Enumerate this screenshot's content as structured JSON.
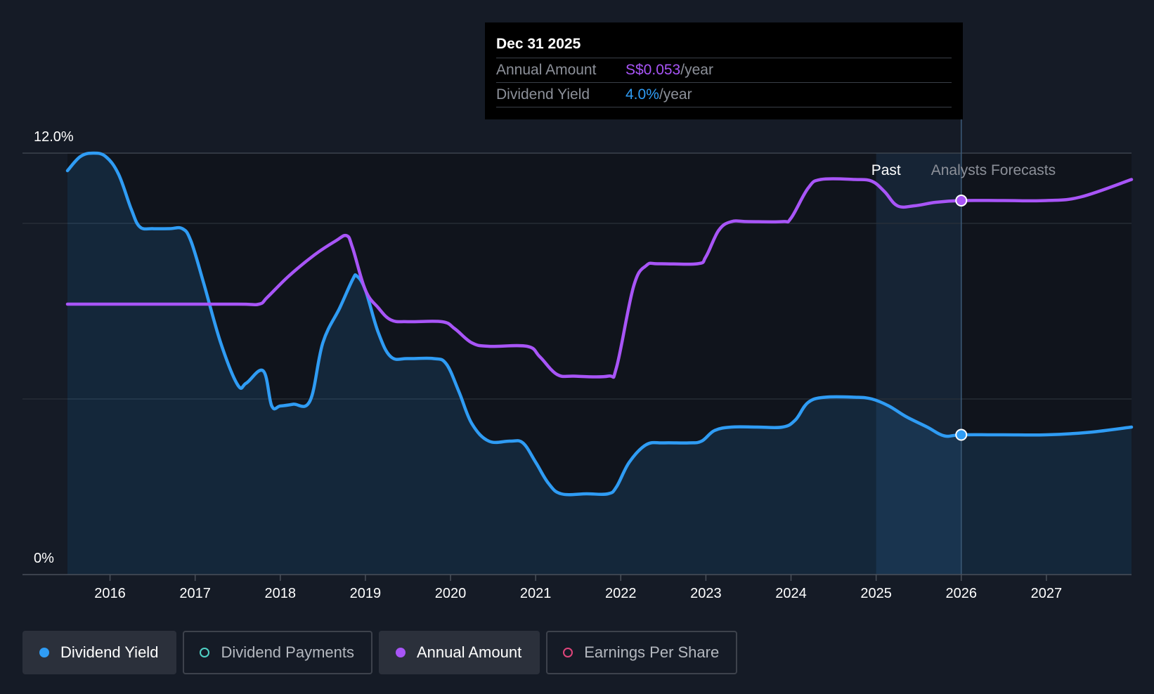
{
  "tooltip": {
    "date": "Dec 31 2025",
    "rows": [
      {
        "label": "Annual Amount",
        "value": "S$0.053",
        "unit": "/year"
      },
      {
        "label": "Dividend Yield",
        "value": "4.0%",
        "unit": "/year"
      }
    ]
  },
  "legend": [
    {
      "label": "Dividend Yield",
      "active": true,
      "color": "#2f9cf4"
    },
    {
      "label": "Dividend Payments",
      "active": false,
      "color": "#4fd1c5"
    },
    {
      "label": "Annual Amount",
      "active": true,
      "color": "#a855f7"
    },
    {
      "label": "Earnings Per Share",
      "active": false,
      "color": "#e0457b"
    }
  ],
  "chart_data": {
    "type": "line",
    "y_tick_labels": [
      "12.0%",
      "0%"
    ],
    "ylim": [
      0,
      12.0
    ],
    "xlim": [
      2015.5,
      2028.0
    ],
    "x_ticks": [
      2016,
      2017,
      2018,
      2019,
      2020,
      2021,
      2022,
      2023,
      2024,
      2025,
      2026,
      2027
    ],
    "past_label": "Past",
    "forecast_label": "Analysts Forecasts",
    "forecast_start": 2026.0,
    "past_shade_start": 2025.0,
    "highlight_x": 2026.0,
    "grid": true,
    "series": [
      {
        "name": "Dividend Yield",
        "color": "#2f9cf4",
        "unit": "%",
        "area": true,
        "points": [
          [
            2015.5,
            11.5
          ],
          [
            2015.65,
            11.9
          ],
          [
            2015.8,
            12.0
          ],
          [
            2015.95,
            11.9
          ],
          [
            2016.1,
            11.4
          ],
          [
            2016.25,
            10.4
          ],
          [
            2016.35,
            9.9
          ],
          [
            2016.5,
            9.85
          ],
          [
            2016.7,
            9.85
          ],
          [
            2016.85,
            9.85
          ],
          [
            2016.95,
            9.5
          ],
          [
            2017.1,
            8.3
          ],
          [
            2017.3,
            6.6
          ],
          [
            2017.5,
            5.4
          ],
          [
            2017.6,
            5.45
          ],
          [
            2017.8,
            5.8
          ],
          [
            2017.9,
            4.8
          ],
          [
            2018.0,
            4.8
          ],
          [
            2018.15,
            4.85
          ],
          [
            2018.35,
            4.95
          ],
          [
            2018.5,
            6.6
          ],
          [
            2018.7,
            7.6
          ],
          [
            2018.85,
            8.4
          ],
          [
            2018.9,
            8.5
          ],
          [
            2019.0,
            8.1
          ],
          [
            2019.15,
            6.9
          ],
          [
            2019.3,
            6.2
          ],
          [
            2019.5,
            6.15
          ],
          [
            2019.8,
            6.15
          ],
          [
            2019.95,
            6.0
          ],
          [
            2020.1,
            5.2
          ],
          [
            2020.25,
            4.3
          ],
          [
            2020.45,
            3.8
          ],
          [
            2020.7,
            3.8
          ],
          [
            2020.85,
            3.75
          ],
          [
            2021.0,
            3.2
          ],
          [
            2021.15,
            2.6
          ],
          [
            2021.3,
            2.3
          ],
          [
            2021.6,
            2.3
          ],
          [
            2021.85,
            2.3
          ],
          [
            2021.95,
            2.5
          ],
          [
            2022.1,
            3.2
          ],
          [
            2022.3,
            3.7
          ],
          [
            2022.5,
            3.75
          ],
          [
            2022.8,
            3.75
          ],
          [
            2022.95,
            3.8
          ],
          [
            2023.1,
            4.1
          ],
          [
            2023.3,
            4.2
          ],
          [
            2023.6,
            4.2
          ],
          [
            2023.9,
            4.2
          ],
          [
            2024.05,
            4.4
          ],
          [
            2024.2,
            4.9
          ],
          [
            2024.4,
            5.05
          ],
          [
            2024.75,
            5.05
          ],
          [
            2024.95,
            5.0
          ],
          [
            2025.15,
            4.8
          ],
          [
            2025.35,
            4.5
          ],
          [
            2025.6,
            4.2
          ],
          [
            2025.8,
            3.95
          ],
          [
            2026.0,
            3.98
          ],
          [
            2026.5,
            3.98
          ],
          [
            2027.0,
            3.98
          ],
          [
            2027.5,
            4.05
          ],
          [
            2028.0,
            4.2
          ]
        ]
      },
      {
        "name": "Annual Amount",
        "color": "#a855f7",
        "area": false,
        "points": [
          [
            2015.5,
            7.7
          ],
          [
            2016.5,
            7.7
          ],
          [
            2017.5,
            7.7
          ],
          [
            2017.75,
            7.7
          ],
          [
            2017.85,
            7.9
          ],
          [
            2018.1,
            8.5
          ],
          [
            2018.4,
            9.1
          ],
          [
            2018.65,
            9.5
          ],
          [
            2018.78,
            9.65
          ],
          [
            2018.85,
            9.3
          ],
          [
            2019.0,
            8.1
          ],
          [
            2019.15,
            7.6
          ],
          [
            2019.3,
            7.25
          ],
          [
            2019.5,
            7.2
          ],
          [
            2019.9,
            7.2
          ],
          [
            2020.05,
            7.0
          ],
          [
            2020.25,
            6.6
          ],
          [
            2020.45,
            6.5
          ],
          [
            2020.9,
            6.5
          ],
          [
            2021.05,
            6.2
          ],
          [
            2021.25,
            5.7
          ],
          [
            2021.45,
            5.65
          ],
          [
            2021.85,
            5.65
          ],
          [
            2021.95,
            5.9
          ],
          [
            2022.15,
            8.2
          ],
          [
            2022.3,
            8.8
          ],
          [
            2022.45,
            8.85
          ],
          [
            2022.9,
            8.85
          ],
          [
            2023.0,
            9.05
          ],
          [
            2023.15,
            9.8
          ],
          [
            2023.3,
            10.05
          ],
          [
            2023.5,
            10.05
          ],
          [
            2023.9,
            10.05
          ],
          [
            2024.0,
            10.15
          ],
          [
            2024.2,
            11.0
          ],
          [
            2024.35,
            11.25
          ],
          [
            2024.75,
            11.25
          ],
          [
            2024.95,
            11.2
          ],
          [
            2025.1,
            10.9
          ],
          [
            2025.25,
            10.5
          ],
          [
            2025.45,
            10.5
          ],
          [
            2025.7,
            10.6
          ],
          [
            2026.0,
            10.65
          ],
          [
            2026.5,
            10.65
          ],
          [
            2027.0,
            10.65
          ],
          [
            2027.4,
            10.75
          ],
          [
            2028.0,
            11.25
          ]
        ]
      }
    ]
  }
}
